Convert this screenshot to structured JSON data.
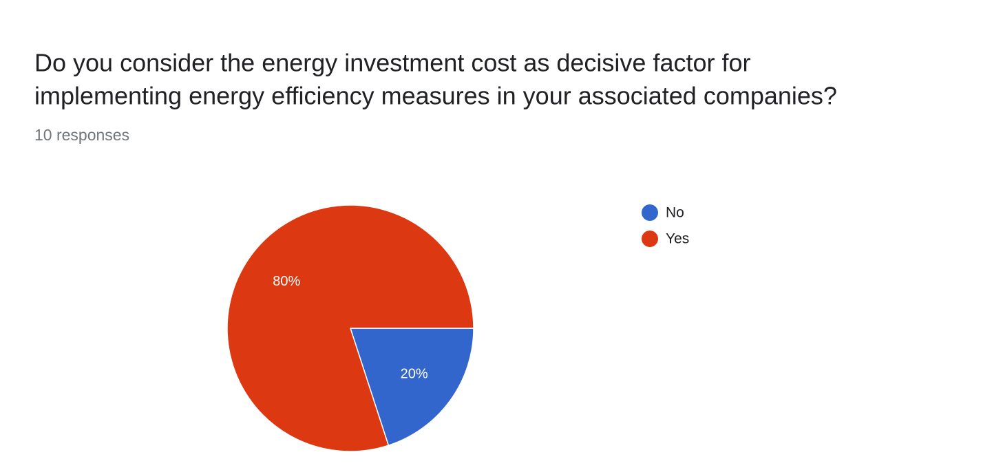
{
  "chart_data": {
    "type": "pie",
    "title": [
      "Do you consider the energy investment cost as decisive factor for",
      "implementing energy efficiency measures in your associated companies?"
    ],
    "subtitle": "10 responses",
    "categories": [
      "No",
      "Yes"
    ],
    "values": [
      20,
      80
    ],
    "value_labels": [
      "20%",
      "80%"
    ],
    "colors": [
      "#3366cc",
      "#dc3912"
    ],
    "legend": "right"
  }
}
